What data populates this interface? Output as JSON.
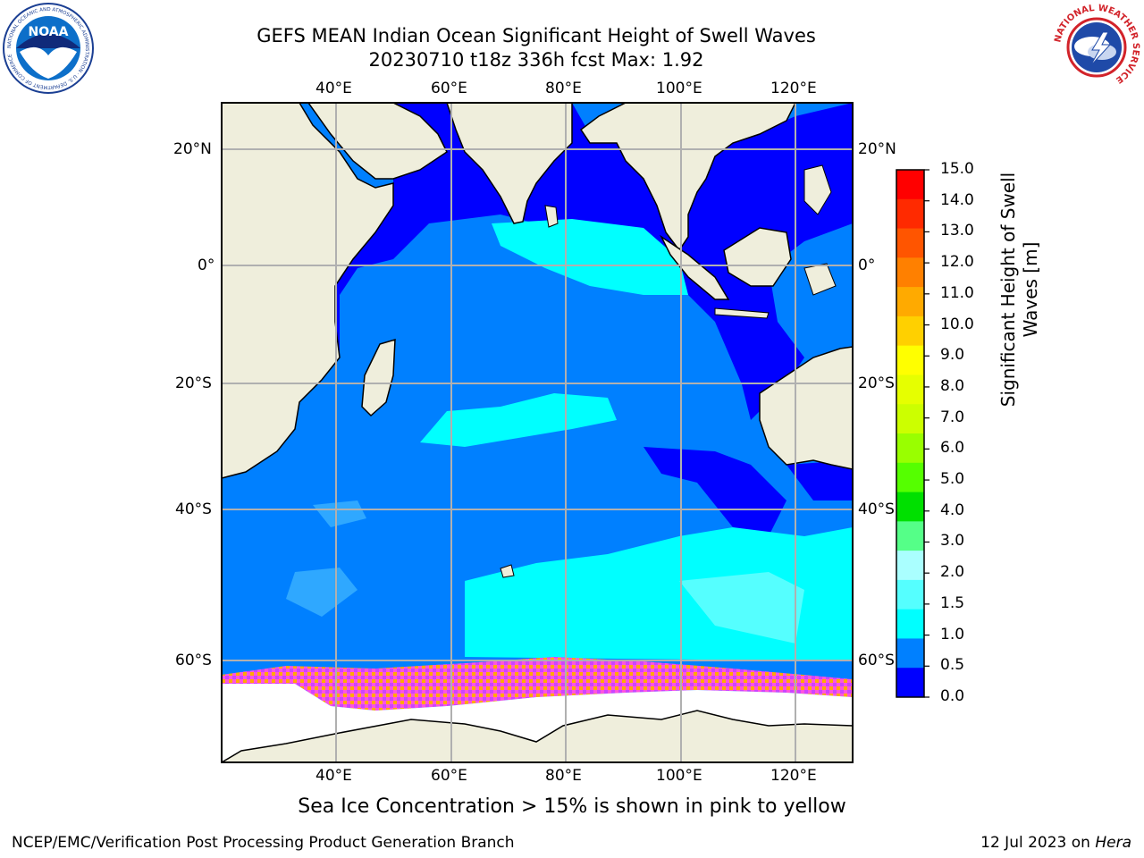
{
  "title": {
    "line1": "GEFS MEAN Indian Ocean Significant Height of Swell Waves",
    "line2": "20230710 t18z 336h fcst   Max: 1.92"
  },
  "logos": {
    "left": "noaa-logo",
    "right": "national-weather-service-logo",
    "left_text": "NATIONAL OCEANIC AND ATMOSPHERIC ADMINISTRATION · U.S. DEPARTMENT OF COMMERCE",
    "left_center": "NOAA",
    "right_text": "NATIONAL WEATHER SERVICE"
  },
  "map": {
    "lon_labels": [
      "40°E",
      "60°E",
      "80°E",
      "100°E",
      "120°E"
    ],
    "lat_labels": [
      "20°N",
      "0°",
      "20°S",
      "40°S",
      "60°S"
    ],
    "land_color": "#efeedc",
    "ocean_colors": {
      "deep": "#0000ff",
      "mid": "#0080ff",
      "light": "#00ffff",
      "ice": "#ff55dd"
    }
  },
  "colorbar": {
    "title": "Significant Height of Swell Waves [m]",
    "labels": [
      "15.0",
      "14.0",
      "13.0",
      "12.0",
      "11.0",
      "10.0",
      "9.0",
      "8.0",
      "7.0",
      "6.0",
      "5.0",
      "4.0",
      "3.0",
      "2.0",
      "1.5",
      "1.0",
      "0.5",
      "0.0"
    ],
    "colors_top_to_bottom": [
      "#ff0000",
      "#ff2a00",
      "#ff5500",
      "#ff8000",
      "#ffaa00",
      "#ffd000",
      "#ffff00",
      "#e6ff00",
      "#ccff00",
      "#99ff00",
      "#55ff00",
      "#00e000",
      "#55ff88",
      "#aaffff",
      "#55ffff",
      "#00ffff",
      "#0080ff",
      "#0000ff"
    ]
  },
  "note": "Sea Ice Concentration > 15% is shown in pink to yellow",
  "footer": {
    "left": "NCEP/EMC/Verification Post Processing Product Generation Branch",
    "right_date": "12 Jul 2023 on",
    "right_host": "Hera"
  }
}
